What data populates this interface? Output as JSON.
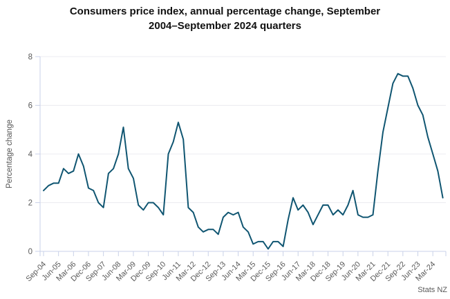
{
  "header": {
    "title_line1": "Consumers price index, annual percentage change, September",
    "title_line2": "2004–September 2024 quarters"
  },
  "source": "Stats NZ",
  "chart_data": {
    "type": "line",
    "title": "Consumers price index, annual percentage change, September 2004–September 2024 quarters",
    "xlabel": "",
    "ylabel": "Percentage change",
    "ylim": [
      0,
      8
    ],
    "yticks": [
      0,
      2,
      4,
      6,
      8
    ],
    "grid": true,
    "legend": "none",
    "line_color": "#0f5571",
    "grid_color": "#ebebf0",
    "axis_color": "#c9d1e8",
    "tick_label_color": "#595959",
    "x_tick_step": 3,
    "x_tick_labels": [
      "Sep-04",
      "Jun-05",
      "Mar-06",
      "Dec-06",
      "Sep-07",
      "Jun-08",
      "Mar-09",
      "Dec-09",
      "Sep-10",
      "Jun-11",
      "Mar-12",
      "Dec-12",
      "Sep-13",
      "Jun-14",
      "Mar-15",
      "Dec-15",
      "Sep-16",
      "Jun-17",
      "Mar-18",
      "Dec-18",
      "Sep-19",
      "Jun-20",
      "Mar-21",
      "Dec-21",
      "Sep-22",
      "Jun-23",
      "Mar-24"
    ],
    "categories": [
      "Sep-04",
      "Dec-04",
      "Mar-05",
      "Jun-05",
      "Sep-05",
      "Dec-05",
      "Mar-06",
      "Jun-06",
      "Sep-06",
      "Dec-06",
      "Mar-07",
      "Jun-07",
      "Sep-07",
      "Dec-07",
      "Mar-08",
      "Jun-08",
      "Sep-08",
      "Dec-08",
      "Mar-09",
      "Jun-09",
      "Sep-09",
      "Dec-09",
      "Mar-10",
      "Jun-10",
      "Sep-10",
      "Dec-10",
      "Mar-11",
      "Jun-11",
      "Sep-11",
      "Dec-11",
      "Mar-12",
      "Jun-12",
      "Sep-12",
      "Dec-12",
      "Mar-13",
      "Jun-13",
      "Sep-13",
      "Dec-13",
      "Mar-14",
      "Jun-14",
      "Sep-14",
      "Dec-14",
      "Mar-15",
      "Jun-15",
      "Sep-15",
      "Dec-15",
      "Mar-16",
      "Jun-16",
      "Sep-16",
      "Dec-16",
      "Mar-17",
      "Jun-17",
      "Sep-17",
      "Dec-17",
      "Mar-18",
      "Jun-18",
      "Sep-18",
      "Dec-18",
      "Mar-19",
      "Jun-19",
      "Sep-19",
      "Dec-19",
      "Mar-20",
      "Jun-20",
      "Sep-20",
      "Dec-20",
      "Mar-21",
      "Jun-21",
      "Sep-21",
      "Dec-21",
      "Mar-22",
      "Jun-22",
      "Sep-22",
      "Dec-22",
      "Mar-23",
      "Jun-23",
      "Sep-23",
      "Dec-23",
      "Mar-24",
      "Jun-24",
      "Sep-24"
    ],
    "series": [
      {
        "name": "CPI annual percentage change",
        "values": [
          2.5,
          2.7,
          2.8,
          2.8,
          3.4,
          3.2,
          3.3,
          4.0,
          3.5,
          2.6,
          2.5,
          2.0,
          1.8,
          3.2,
          3.4,
          4.0,
          5.1,
          3.4,
          3.0,
          1.9,
          1.7,
          2.0,
          2.0,
          1.8,
          1.5,
          4.0,
          4.5,
          5.3,
          4.6,
          1.8,
          1.6,
          1.0,
          0.8,
          0.9,
          0.9,
          0.7,
          1.4,
          1.6,
          1.5,
          1.6,
          1.0,
          0.8,
          0.3,
          0.4,
          0.4,
          0.1,
          0.4,
          0.4,
          0.2,
          1.3,
          2.2,
          1.7,
          1.9,
          1.6,
          1.1,
          1.5,
          1.9,
          1.9,
          1.5,
          1.7,
          1.5,
          1.9,
          2.5,
          1.5,
          1.4,
          1.4,
          1.5,
          3.3,
          4.9,
          5.9,
          6.9,
          7.3,
          7.2,
          7.2,
          6.7,
          6.0,
          5.6,
          4.7,
          4.0,
          3.3,
          2.2
        ]
      }
    ],
    "source": "Stats NZ"
  }
}
